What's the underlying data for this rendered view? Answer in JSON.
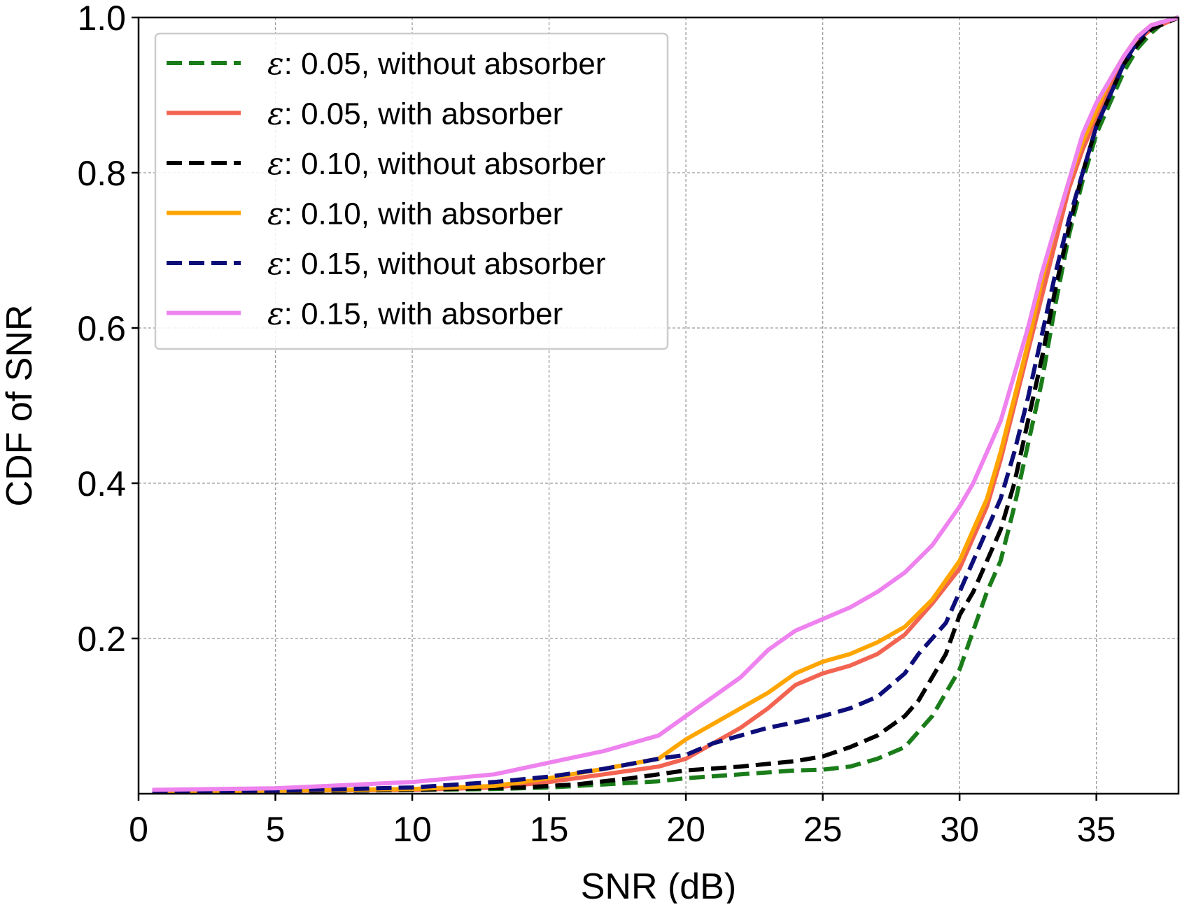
{
  "chart_data": {
    "type": "line",
    "title": "",
    "xlabel": "SNR (dB)",
    "ylabel": "CDF of SNR",
    "xlim": [
      0,
      38
    ],
    "ylim": [
      0,
      1.0
    ],
    "xticks": [
      0,
      5,
      10,
      15,
      20,
      25,
      30,
      35
    ],
    "xtick_labels": [
      "0",
      "5",
      "10",
      "15",
      "20",
      "25",
      "30",
      "35"
    ],
    "yticks": [
      0.2,
      0.4,
      0.6,
      0.8,
      1.0
    ],
    "ytick_labels": [
      "0.2",
      "0.4",
      "0.6",
      "0.8",
      "1.0"
    ],
    "grid": true,
    "legend_position": "top-left",
    "series": [
      {
        "name": "ε: 0.05, without absorber",
        "legend_symbol": "ε",
        "legend_text": ": 0.05, without absorber",
        "color": "#1a7d1a",
        "style": "dashed",
        "points": [
          [
            0.5,
            0.003
          ],
          [
            5,
            0.004
          ],
          [
            10,
            0.005
          ],
          [
            13,
            0.006
          ],
          [
            15,
            0.008
          ],
          [
            17,
            0.012
          ],
          [
            19,
            0.016
          ],
          [
            20,
            0.02
          ],
          [
            22,
            0.025
          ],
          [
            24,
            0.03
          ],
          [
            25,
            0.031
          ],
          [
            26,
            0.035
          ],
          [
            27,
            0.045
          ],
          [
            28,
            0.06
          ],
          [
            28.5,
            0.08
          ],
          [
            29,
            0.1
          ],
          [
            29.5,
            0.13
          ],
          [
            30,
            0.16
          ],
          [
            30.5,
            0.21
          ],
          [
            31,
            0.26
          ],
          [
            31.5,
            0.3
          ],
          [
            32,
            0.37
          ],
          [
            32.5,
            0.45
          ],
          [
            33,
            0.53
          ],
          [
            33.5,
            0.63
          ],
          [
            34,
            0.72
          ],
          [
            34.5,
            0.79
          ],
          [
            35,
            0.85
          ],
          [
            35.5,
            0.89
          ],
          [
            36,
            0.93
          ],
          [
            36.5,
            0.96
          ],
          [
            37,
            0.98
          ],
          [
            37.5,
            0.995
          ],
          [
            38,
            1.0
          ]
        ]
      },
      {
        "name": "ε: 0.05, with absorber",
        "legend_symbol": "ε",
        "legend_text": ": 0.05, with absorber",
        "color": "#f26451",
        "style": "solid",
        "points": [
          [
            0.5,
            0.003
          ],
          [
            5,
            0.004
          ],
          [
            10,
            0.005
          ],
          [
            13,
            0.008
          ],
          [
            15,
            0.015
          ],
          [
            17,
            0.025
          ],
          [
            19,
            0.035
          ],
          [
            20,
            0.045
          ],
          [
            21,
            0.065
          ],
          [
            22,
            0.085
          ],
          [
            23,
            0.11
          ],
          [
            24,
            0.14
          ],
          [
            25,
            0.155
          ],
          [
            26,
            0.165
          ],
          [
            27,
            0.18
          ],
          [
            28,
            0.205
          ],
          [
            29,
            0.245
          ],
          [
            30,
            0.29
          ],
          [
            30.5,
            0.33
          ],
          [
            31,
            0.37
          ],
          [
            31.5,
            0.43
          ],
          [
            32,
            0.5
          ],
          [
            32.5,
            0.57
          ],
          [
            33,
            0.64
          ],
          [
            33.5,
            0.71
          ],
          [
            34,
            0.78
          ],
          [
            34.5,
            0.83
          ],
          [
            35,
            0.87
          ],
          [
            35.5,
            0.91
          ],
          [
            36,
            0.94
          ],
          [
            36.5,
            0.97
          ],
          [
            37,
            0.985
          ],
          [
            38,
            1.0
          ]
        ]
      },
      {
        "name": "ε: 0.10, without absorber",
        "legend_symbol": "ε",
        "legend_text": ": 0.10, without absorber",
        "color": "#000000",
        "style": "dashed",
        "points": [
          [
            0.5,
            0.002
          ],
          [
            5,
            0.003
          ],
          [
            10,
            0.005
          ],
          [
            14,
            0.008
          ],
          [
            16,
            0.012
          ],
          [
            18,
            0.02
          ],
          [
            20,
            0.03
          ],
          [
            22,
            0.035
          ],
          [
            24,
            0.042
          ],
          [
            25,
            0.048
          ],
          [
            26,
            0.06
          ],
          [
            27,
            0.075
          ],
          [
            28,
            0.1
          ],
          [
            28.5,
            0.12
          ],
          [
            29,
            0.15
          ],
          [
            29.5,
            0.18
          ],
          [
            30,
            0.23
          ],
          [
            30.5,
            0.26
          ],
          [
            31,
            0.3
          ],
          [
            31.5,
            0.34
          ],
          [
            32,
            0.4
          ],
          [
            32.5,
            0.48
          ],
          [
            33,
            0.56
          ],
          [
            33.5,
            0.65
          ],
          [
            34,
            0.73
          ],
          [
            34.5,
            0.8
          ],
          [
            35,
            0.86
          ],
          [
            35.5,
            0.9
          ],
          [
            36,
            0.94
          ],
          [
            36.5,
            0.965
          ],
          [
            37,
            0.985
          ],
          [
            38,
            1.0
          ]
        ]
      },
      {
        "name": "ε: 0.10, with absorber",
        "legend_symbol": "ε",
        "legend_text": ": 0.10, with absorber",
        "color": "#ffa500",
        "style": "solid",
        "points": [
          [
            0.5,
            0.003
          ],
          [
            5,
            0.004
          ],
          [
            10,
            0.006
          ],
          [
            13,
            0.01
          ],
          [
            15,
            0.02
          ],
          [
            17,
            0.032
          ],
          [
            19,
            0.045
          ],
          [
            20,
            0.07
          ],
          [
            21,
            0.09
          ],
          [
            22,
            0.11
          ],
          [
            23,
            0.13
          ],
          [
            24,
            0.155
          ],
          [
            25,
            0.17
          ],
          [
            26,
            0.18
          ],
          [
            27,
            0.195
          ],
          [
            28,
            0.215
          ],
          [
            29,
            0.25
          ],
          [
            30,
            0.3
          ],
          [
            30.5,
            0.34
          ],
          [
            31,
            0.38
          ],
          [
            31.5,
            0.44
          ],
          [
            32,
            0.51
          ],
          [
            32.5,
            0.58
          ],
          [
            33,
            0.66
          ],
          [
            33.5,
            0.73
          ],
          [
            34,
            0.79
          ],
          [
            34.5,
            0.84
          ],
          [
            35,
            0.88
          ],
          [
            35.5,
            0.92
          ],
          [
            36,
            0.95
          ],
          [
            36.5,
            0.975
          ],
          [
            37,
            0.99
          ],
          [
            38,
            1.0
          ]
        ]
      },
      {
        "name": "ε: 0.15, without absorber",
        "legend_symbol": "ε",
        "legend_text": ": 0.15, without absorber",
        "color": "#0d0d7a",
        "style": "dashed",
        "points": [
          [
            0.5,
            0.003
          ],
          [
            5,
            0.004
          ],
          [
            10,
            0.008
          ],
          [
            13,
            0.015
          ],
          [
            15,
            0.022
          ],
          [
            17,
            0.032
          ],
          [
            19,
            0.045
          ],
          [
            20,
            0.05
          ],
          [
            21,
            0.065
          ],
          [
            22,
            0.075
          ],
          [
            23,
            0.085
          ],
          [
            24,
            0.092
          ],
          [
            25,
            0.1
          ],
          [
            26,
            0.11
          ],
          [
            27,
            0.125
          ],
          [
            28,
            0.155
          ],
          [
            28.5,
            0.18
          ],
          [
            29,
            0.2
          ],
          [
            29.5,
            0.22
          ],
          [
            30,
            0.26
          ],
          [
            30.5,
            0.3
          ],
          [
            31,
            0.34
          ],
          [
            31.5,
            0.38
          ],
          [
            32,
            0.44
          ],
          [
            32.5,
            0.51
          ],
          [
            33,
            0.59
          ],
          [
            33.5,
            0.67
          ],
          [
            34,
            0.74
          ],
          [
            34.5,
            0.8
          ],
          [
            35,
            0.86
          ],
          [
            35.5,
            0.9
          ],
          [
            36,
            0.94
          ],
          [
            36.5,
            0.97
          ],
          [
            37,
            0.99
          ],
          [
            38,
            1.0
          ]
        ]
      },
      {
        "name": "ε: 0.15, with absorber",
        "legend_symbol": "ε",
        "legend_text": ": 0.15, with absorber",
        "color": "#ee82ee",
        "style": "solid",
        "points": [
          [
            0.5,
            0.005
          ],
          [
            5,
            0.007
          ],
          [
            10,
            0.015
          ],
          [
            13,
            0.025
          ],
          [
            15,
            0.04
          ],
          [
            17,
            0.055
          ],
          [
            19,
            0.075
          ],
          [
            20,
            0.1
          ],
          [
            21,
            0.125
          ],
          [
            22,
            0.15
          ],
          [
            23,
            0.185
          ],
          [
            24,
            0.21
          ],
          [
            25,
            0.225
          ],
          [
            26,
            0.24
          ],
          [
            27,
            0.26
          ],
          [
            28,
            0.285
          ],
          [
            29,
            0.32
          ],
          [
            30,
            0.37
          ],
          [
            30.5,
            0.4
          ],
          [
            31,
            0.44
          ],
          [
            31.5,
            0.48
          ],
          [
            32,
            0.54
          ],
          [
            32.5,
            0.6
          ],
          [
            33,
            0.67
          ],
          [
            33.5,
            0.73
          ],
          [
            34,
            0.79
          ],
          [
            34.5,
            0.85
          ],
          [
            35,
            0.89
          ],
          [
            35.5,
            0.92
          ],
          [
            36,
            0.95
          ],
          [
            36.5,
            0.975
          ],
          [
            37,
            0.99
          ],
          [
            38,
            1.0
          ]
        ]
      }
    ]
  }
}
